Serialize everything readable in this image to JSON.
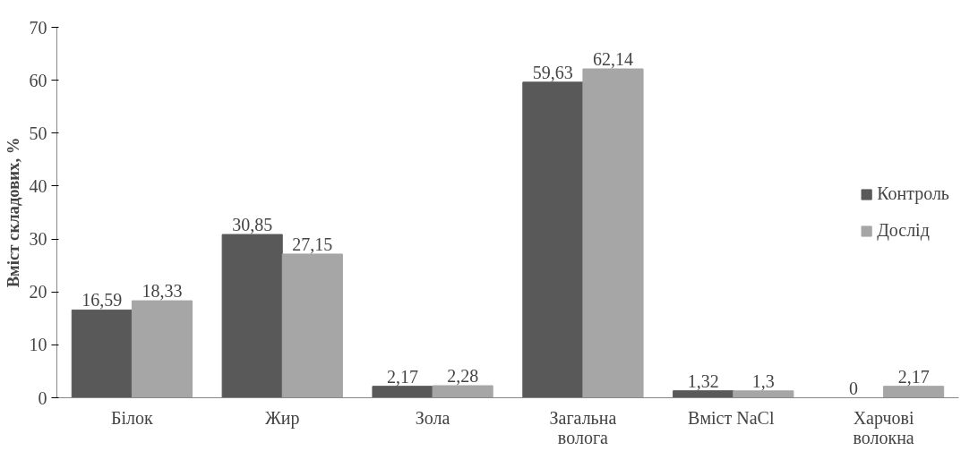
{
  "chart_data": {
    "type": "bar",
    "ylabel": "Вміст складових, %",
    "categories": [
      "Білок",
      "Жир",
      "Зола",
      "Загальна\nволога",
      "Вміст  NaCl",
      "Харчові\nволокна"
    ],
    "series": [
      {
        "name": "Контроль",
        "color": "#595959",
        "values": [
          16.59,
          30.85,
          2.17,
          59.63,
          1.32,
          0
        ],
        "value_labels": [
          "16,59",
          "30,85",
          "2,17",
          "59,63",
          "1,32",
          "0"
        ]
      },
      {
        "name": "Дослід",
        "color": "#a6a6a6",
        "values": [
          18.33,
          27.15,
          2.28,
          62.14,
          1.3,
          2.17
        ],
        "value_labels": [
          "18,33",
          "27,15",
          "2,28",
          "62,14",
          "1,3",
          "2,17"
        ]
      }
    ],
    "ylim": [
      0,
      70
    ],
    "yticks": [
      0,
      10,
      20,
      30,
      40,
      50,
      60,
      70
    ],
    "grid": false,
    "legend": "right"
  }
}
